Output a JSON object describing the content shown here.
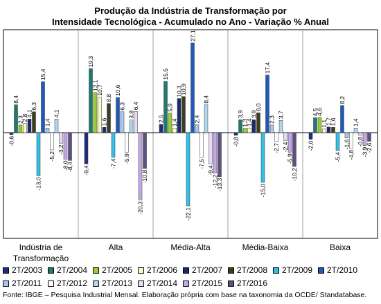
{
  "chart_data": {
    "type": "bar",
    "title": "Produção da Indústria de Transformação por",
    "subtitle": "Intensidade Tecnológica -  Acumulado no Ano - Variação % Anual",
    "categories": [
      "Indústria de Transformação",
      "Alta",
      "Média-Alta",
      "Média-Baixa",
      "Baixa"
    ],
    "xlabel": "",
    "ylabel": "",
    "ylim": [
      -24,
      29
    ],
    "grid": false,
    "legend_position": "bottom",
    "source": "Fonte: IBGE – Pesquisa Industrial Mensal. Elaboração própria com base na taxonomia da OCDE/ Standatabase.",
    "series": [
      {
        "name": "2T/2003",
        "color": "#1f2d7a",
        "values": [
          -0.6,
          -9.4,
          2.5,
          -0.8,
          -2.0
        ]
      },
      {
        "name": "2T/2004",
        "color": "#1e7a6e",
        "values": [
          8.4,
          19.3,
          15.5,
          3.9,
          4.5
        ]
      },
      {
        "name": "2T/2005",
        "color": "#9acd32",
        "values": [
          2.3,
          12.1,
          5.9,
          1.3,
          4.6
        ]
      },
      {
        "name": "2T/2006",
        "color": "#fafac8",
        "values": [
          2.8,
          10.7,
          1.4,
          1.4,
          1.1
        ]
      },
      {
        "name": "2T/2007",
        "color": "#1a2a6c",
        "values": [
          4.1,
          1.6,
          10.3,
          3.9,
          1.7
        ]
      },
      {
        "name": "2T/2008",
        "color": "#3d3d20",
        "values": [
          6.3,
          8.8,
          10.9,
          6.0,
          1.6
        ]
      },
      {
        "name": "2T/2009",
        "color": "#33bfe8",
        "values": [
          -13.0,
          -7.4,
          -22.1,
          -15.0,
          -5.4
        ]
      },
      {
        "name": "2T/2010",
        "color": "#1f5aba",
        "values": [
          15.4,
          10.6,
          27.1,
          17.4,
          8.2
        ]
      },
      {
        "name": "2T/2011",
        "color": "#a6c8f0",
        "values": [
          1.4,
          6.3,
          2.4,
          2.3,
          -1.6
        ]
      },
      {
        "name": "2T/2012",
        "color": "#ffffff",
        "values": [
          -5.2,
          -5.9,
          -7.5,
          -2.7,
          -4.8
        ]
      },
      {
        "name": "2T/2013",
        "color": "#add8f0",
        "values": [
          4.1,
          3.8,
          8.4,
          3.7,
          1.4
        ]
      },
      {
        "name": "2T/2014",
        "color": "#e8dcf5",
        "values": [
          -3.2,
          6.4,
          -9.4,
          -2.4,
          -0.8
        ]
      },
      {
        "name": "2T/2015",
        "color": "#c4a8e8",
        "values": [
          -8.0,
          -20.3,
          -12.2,
          -5.9,
          -3.9
        ]
      },
      {
        "name": "2T/2016",
        "color": "#5a5280",
        "values": [
          -8.4,
          -10.8,
          -13.3,
          -10.2,
          -2.6
        ]
      }
    ]
  }
}
